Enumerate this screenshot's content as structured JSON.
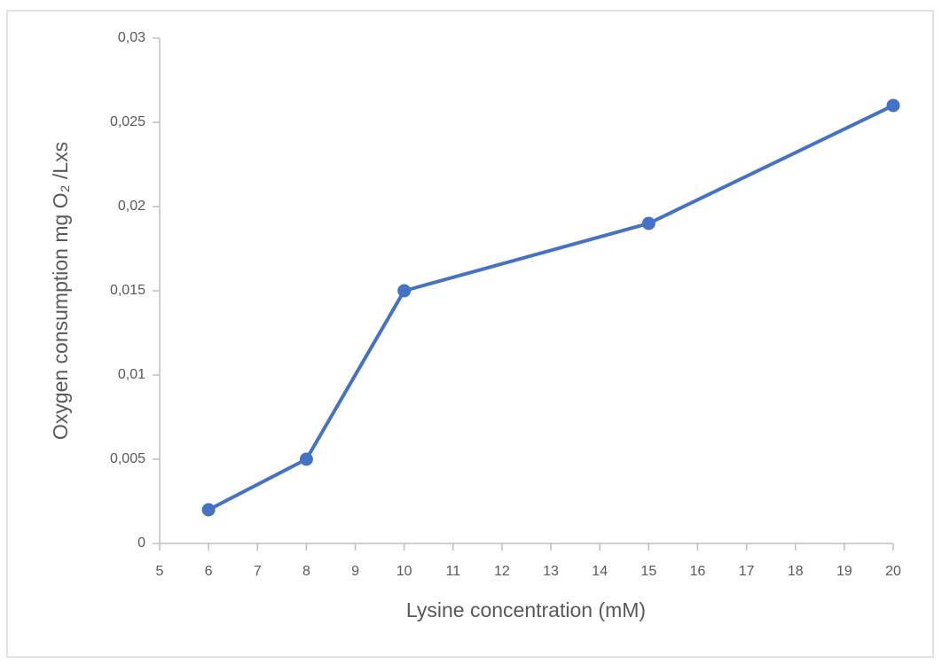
{
  "chart_data": {
    "type": "line",
    "xlabel": "Lysine concentration (mM)",
    "ylabel": "Oxygen consumption mg O₂ /Lxs",
    "x": [
      6,
      8,
      10,
      15,
      20
    ],
    "values": [
      0.002,
      0.005,
      0.015,
      0.019,
      0.026
    ],
    "color": "#4472c4",
    "xlim": [
      5,
      20
    ],
    "xticks": [
      5,
      6,
      7,
      8,
      9,
      10,
      11,
      12,
      13,
      14,
      15,
      16,
      17,
      18,
      19,
      20
    ],
    "ylim": [
      0,
      0.03
    ],
    "yticks": [
      0,
      {
        "value": 0.005,
        "label": "0,005"
      },
      {
        "value": 0.01,
        "label": "0,01"
      },
      {
        "value": 0.015,
        "label": "0,015"
      },
      {
        "value": 0.02,
        "label": "0,02"
      },
      {
        "value": 0.025,
        "label": "0,025"
      },
      {
        "value": 0.03,
        "label": "0,03"
      }
    ],
    "grid": false
  }
}
